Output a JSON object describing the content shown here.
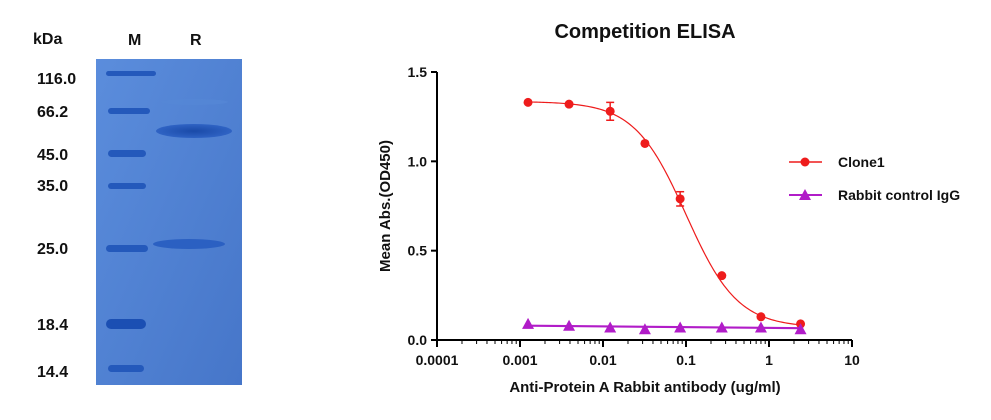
{
  "gel": {
    "unit_label": "kDa",
    "lane_labels": [
      "M",
      "R"
    ],
    "markers": [
      "116.0",
      "66.2",
      "45.0",
      "35.0",
      "25.0",
      "18.4",
      "14.4"
    ]
  },
  "colors": {
    "gel_background": "#4e7fd1",
    "gel_band": "#1f56b8",
    "clone1": "#ee1c1c",
    "rabbit_igg": "#b11cc8"
  },
  "chart_data": {
    "type": "scatter",
    "title": "Competition ELISA",
    "xlabel": "Anti-Protein A Rabbit antibody (ug/ml)",
    "ylabel": "Mean Abs.(OD450)",
    "xscale": "log",
    "xlim": [
      0.0001,
      10
    ],
    "ylim": [
      0,
      1.5
    ],
    "xticks": [
      "0.0001",
      "0.001",
      "0.01",
      "0.1",
      "1",
      "10"
    ],
    "yticks": [
      "0.0",
      "0.5",
      "1.0",
      "1.5"
    ],
    "legend_position": "right",
    "series": [
      {
        "name": "Clone1",
        "marker": "circle",
        "fit": "sigmoid",
        "x": [
          0.00125,
          0.0039,
          0.0122,
          0.032,
          0.085,
          0.27,
          0.8,
          2.4
        ],
        "y": [
          1.33,
          1.32,
          1.28,
          1.1,
          0.79,
          0.36,
          0.13,
          0.09
        ],
        "y_err": [
          0,
          0,
          0.05,
          0,
          0.04,
          0,
          0,
          0
        ]
      },
      {
        "name": "Rabbit control IgG",
        "marker": "triangle",
        "fit": "line",
        "x": [
          0.00125,
          0.0039,
          0.0122,
          0.032,
          0.085,
          0.27,
          0.8,
          2.4
        ],
        "y": [
          0.09,
          0.08,
          0.07,
          0.06,
          0.07,
          0.07,
          0.07,
          0.06
        ],
        "y_err": [
          0,
          0,
          0,
          0,
          0,
          0,
          0,
          0
        ]
      }
    ]
  }
}
